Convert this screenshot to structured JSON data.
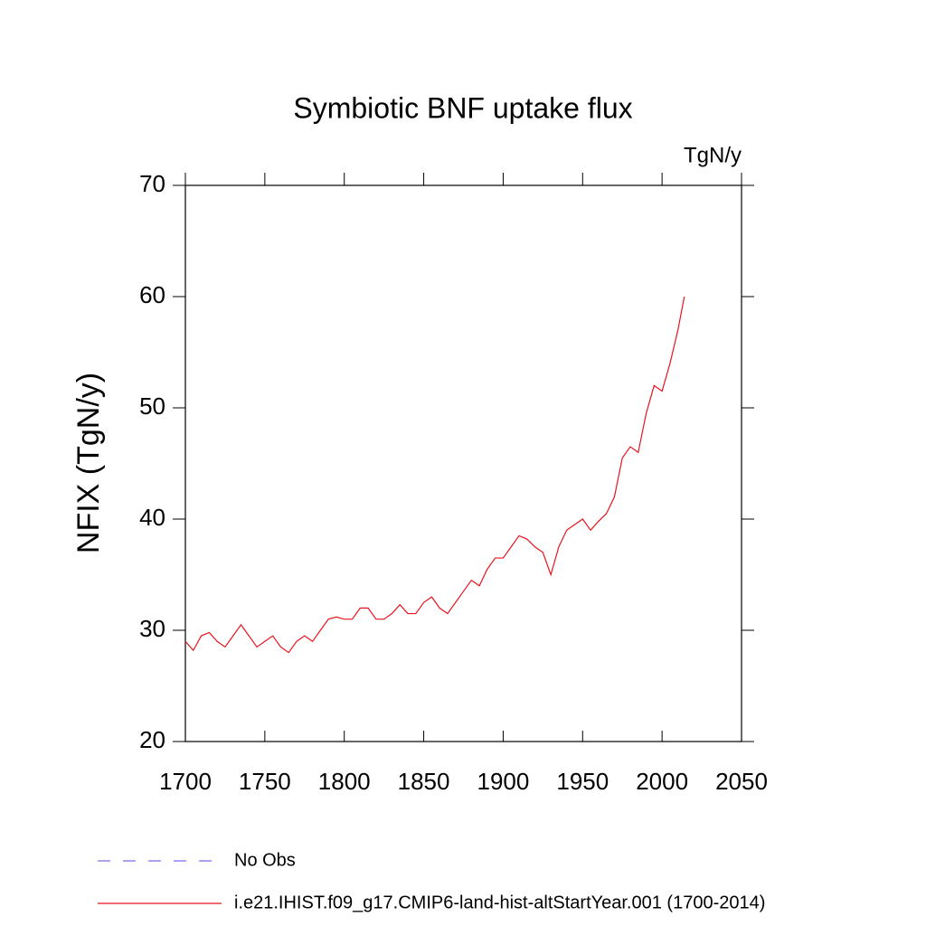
{
  "chart_data": {
    "type": "line",
    "title": "Symbiotic BNF uptake flux",
    "units": "TgN/y",
    "y_label": "NFIX  (TgN/y)",
    "x": [
      1700,
      1705,
      1710,
      1715,
      1720,
      1725,
      1730,
      1735,
      1740,
      1745,
      1750,
      1755,
      1760,
      1765,
      1770,
      1775,
      1780,
      1785,
      1790,
      1795,
      1800,
      1805,
      1810,
      1815,
      1820,
      1825,
      1830,
      1835,
      1840,
      1845,
      1850,
      1855,
      1860,
      1865,
      1870,
      1875,
      1880,
      1885,
      1890,
      1895,
      1900,
      1905,
      1910,
      1915,
      1920,
      1925,
      1930,
      1935,
      1940,
      1945,
      1950,
      1955,
      1960,
      1965,
      1970,
      1975,
      1980,
      1985,
      1990,
      1995,
      2000,
      2005,
      2010,
      2014
    ],
    "series": [
      {
        "name": "No Obs",
        "color": "#7b68ee",
        "dashed": true,
        "values": [
          null,
          null,
          null,
          null,
          null,
          null,
          null,
          null,
          null,
          null,
          null,
          null,
          null,
          null,
          null,
          null,
          null,
          null,
          null,
          null,
          null,
          null,
          null,
          null,
          null,
          null,
          null,
          null,
          null,
          null,
          null,
          null,
          null,
          null,
          null,
          null,
          null,
          null,
          null,
          null,
          null,
          null,
          null,
          null,
          null,
          null,
          null,
          null,
          null,
          null,
          null,
          null,
          null,
          null,
          null,
          null,
          null,
          null,
          null,
          null,
          null,
          null,
          null,
          null
        ]
      },
      {
        "name": "i.e21.IHIST.f09_g17.CMIP6-land-hist-altStartYear.001 (1700-2014)",
        "color": "#e8141e",
        "dashed": false,
        "values": [
          29,
          28.2,
          29.5,
          29.8,
          29,
          28.5,
          29.5,
          30.5,
          29.5,
          28.5,
          29,
          29.5,
          28.5,
          28,
          29,
          29.5,
          29,
          30,
          31,
          31.2,
          31,
          31,
          32,
          32,
          31,
          31,
          31.5,
          32.3,
          31.5,
          31.5,
          32.5,
          33,
          32,
          31.5,
          32.5,
          33.5,
          34.5,
          34,
          35.5,
          36.5,
          36.5,
          37.5,
          38.5,
          38.2,
          37.5,
          37,
          35,
          37.5,
          39,
          39.5,
          40,
          39,
          39.8,
          40.5,
          42,
          45.5,
          46.5,
          46,
          49.5,
          52,
          51.5,
          54,
          57,
          60
        ]
      }
    ],
    "xlim": [
      1700,
      2050
    ],
    "xticks": [
      1700,
      1750,
      1800,
      1850,
      1900,
      1950,
      2000,
      2050
    ],
    "ylim": [
      20,
      70
    ],
    "yticks": [
      20,
      30,
      40,
      50,
      60,
      70
    ]
  }
}
